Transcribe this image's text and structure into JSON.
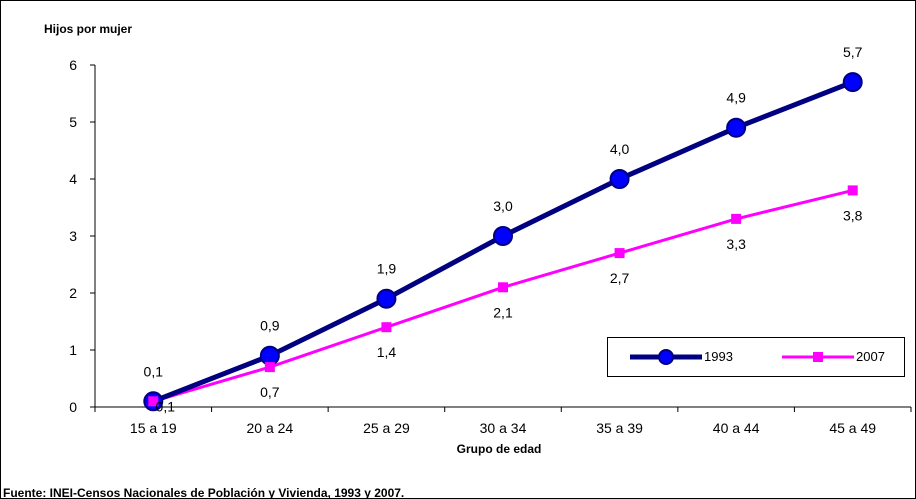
{
  "chart_data": {
    "type": "line",
    "ylabel": "Hijos por mujer",
    "xlabel": "Grupo de edad",
    "categories": [
      "15 a 19",
      "20 a 24",
      "25 a 29",
      "30 a 34",
      "35 a 39",
      "40 a 44",
      "45 a 49"
    ],
    "ylim": [
      0,
      6
    ],
    "yticks": [
      "0",
      "1",
      "2",
      "3",
      "4",
      "5",
      "6"
    ],
    "grid": false,
    "legend_position": "bottom-right",
    "series": [
      {
        "name": "1993",
        "values": [
          0.1,
          0.9,
          1.9,
          3.0,
          4.0,
          4.9,
          5.7
        ],
        "labels": [
          "0,1",
          "0,9",
          "1,9",
          "3,0",
          "4,0",
          "4,9",
          "5,7"
        ],
        "color": "#000080"
      },
      {
        "name": "2007",
        "values": [
          0.1,
          0.7,
          1.4,
          2.1,
          2.7,
          3.3,
          3.8
        ],
        "labels": [
          "0,1",
          "0,7",
          "1,4",
          "2,1",
          "2,7",
          "3,3",
          "3,8"
        ],
        "color": "#ff00ff"
      }
    ]
  },
  "source": "Fuente: INEI-Censos Nacionales de Población y Vivienda, 1993 y 2007."
}
